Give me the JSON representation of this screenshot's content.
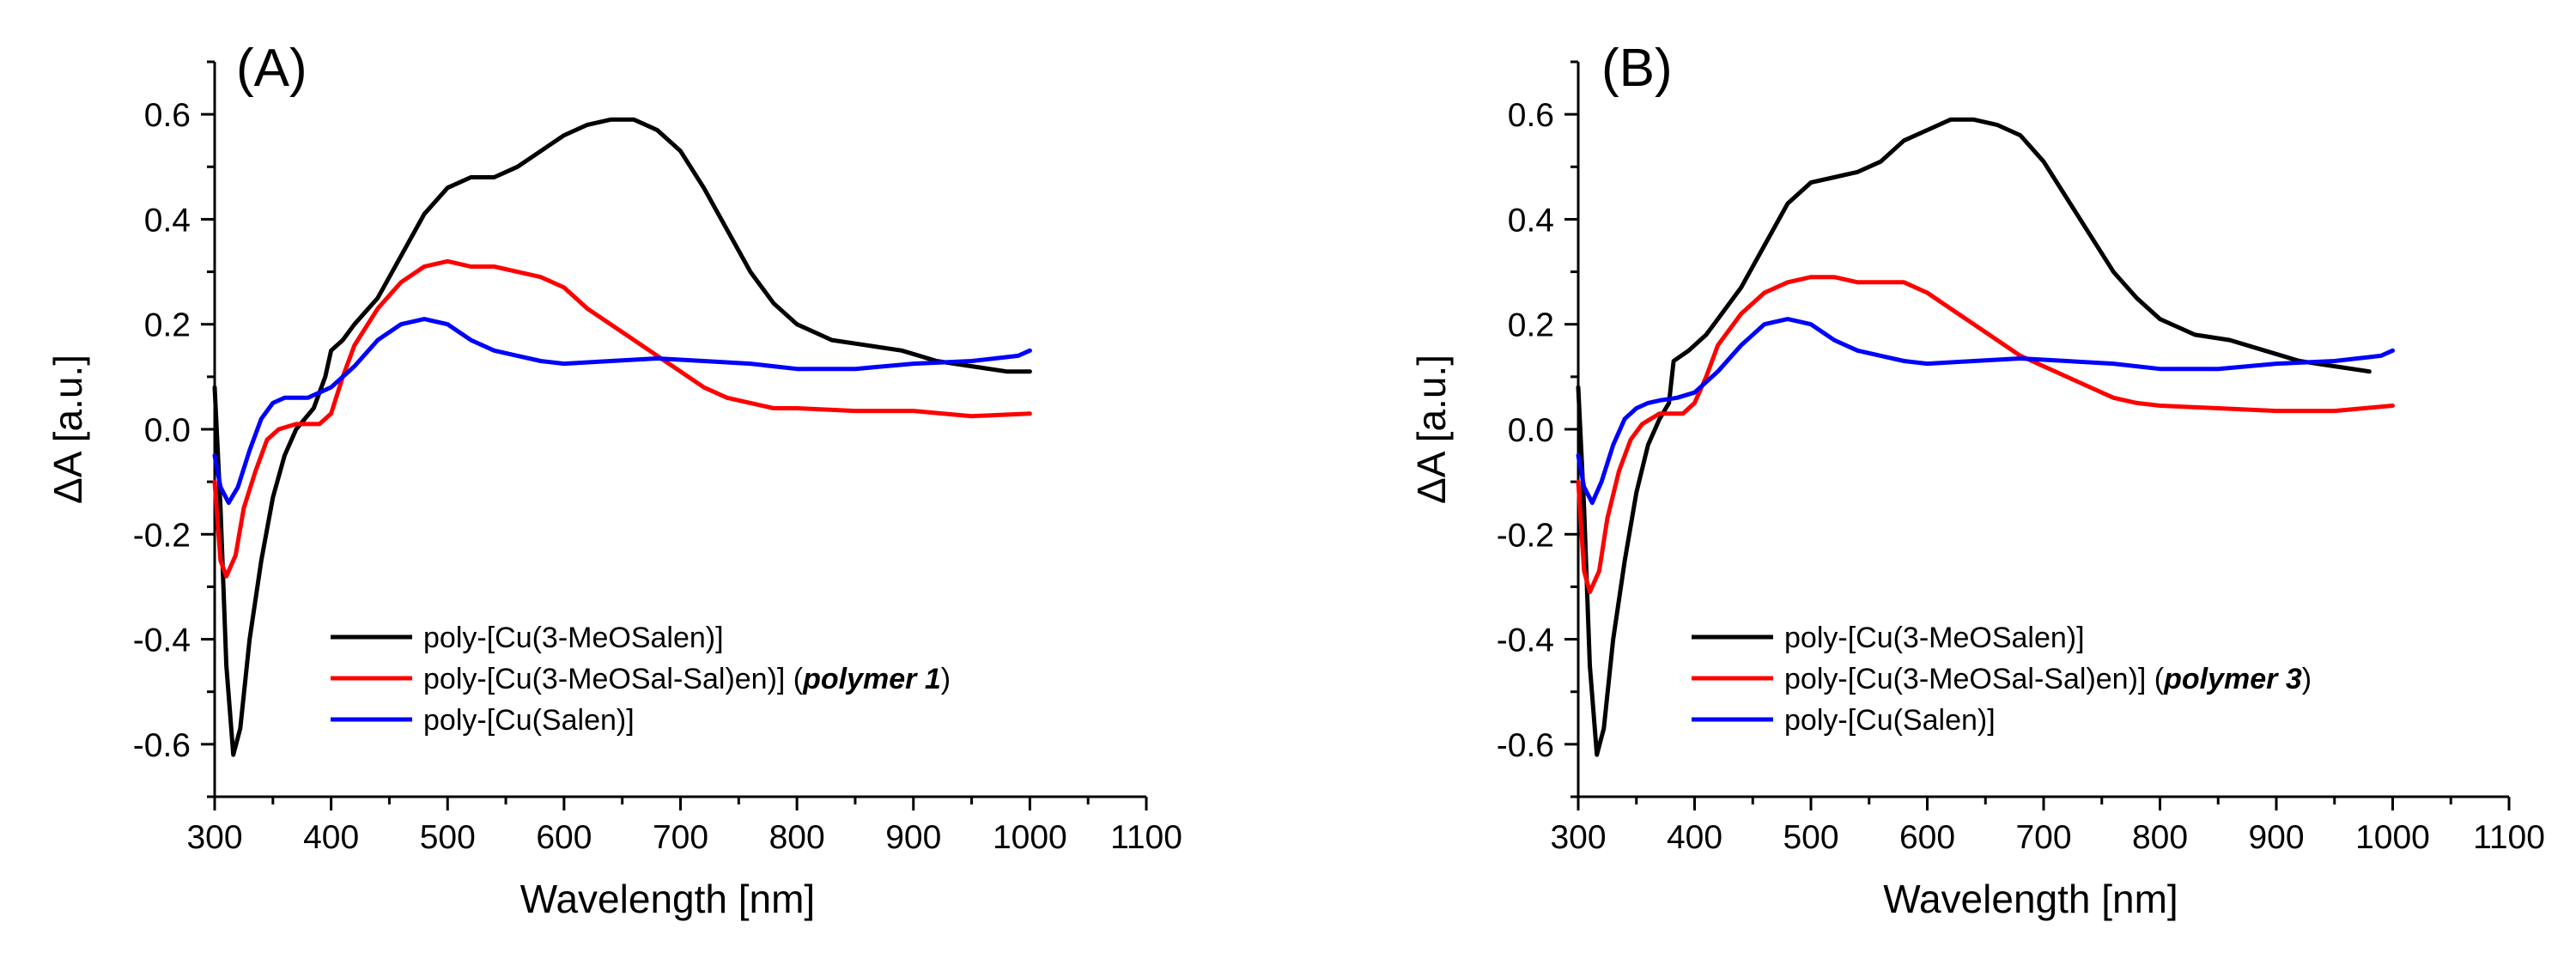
{
  "colors": {
    "black": "#000000",
    "red": "#ff0000",
    "blue": "#0000ff"
  },
  "chart_data": [
    {
      "type": "line",
      "panel_label": "(A)",
      "xlabel": "Wavelength [nm]",
      "ylabel": "ΔA [a.u.]",
      "xlim": [
        300,
        1100
      ],
      "ylim": [
        -0.7,
        0.7
      ],
      "x_ticks": [
        "300",
        "400",
        "500",
        "600",
        "700",
        "800",
        "900",
        "1000",
        "1100"
      ],
      "y_ticks": [
        "-0.6",
        "-0.4",
        "-0.2",
        "0.0",
        "0.2",
        "0.4",
        "0.6"
      ],
      "legend_position": "bottom-center",
      "series": [
        {
          "name": "poly-[Cu(3-MeOSalen)]",
          "color": "#000000",
          "points": [
            [
              300,
              0.08
            ],
            [
              305,
              -0.15
            ],
            [
              310,
              -0.45
            ],
            [
              316,
              -0.62
            ],
            [
              322,
              -0.57
            ],
            [
              330,
              -0.4
            ],
            [
              340,
              -0.25
            ],
            [
              350,
              -0.13
            ],
            [
              360,
              -0.05
            ],
            [
              370,
              0.0
            ],
            [
              385,
              0.04
            ],
            [
              395,
              0.1
            ],
            [
              400,
              0.15
            ],
            [
              410,
              0.17
            ],
            [
              420,
              0.2
            ],
            [
              440,
              0.25
            ],
            [
              460,
              0.33
            ],
            [
              480,
              0.41
            ],
            [
              500,
              0.46
            ],
            [
              520,
              0.48
            ],
            [
              540,
              0.48
            ],
            [
              560,
              0.5
            ],
            [
              580,
              0.53
            ],
            [
              600,
              0.56
            ],
            [
              620,
              0.58
            ],
            [
              640,
              0.59
            ],
            [
              660,
              0.59
            ],
            [
              680,
              0.57
            ],
            [
              700,
              0.53
            ],
            [
              720,
              0.46
            ],
            [
              740,
              0.38
            ],
            [
              760,
              0.3
            ],
            [
              780,
              0.24
            ],
            [
              800,
              0.2
            ],
            [
              830,
              0.17
            ],
            [
              860,
              0.16
            ],
            [
              890,
              0.15
            ],
            [
              920,
              0.13
            ],
            [
              950,
              0.12
            ],
            [
              980,
              0.11
            ],
            [
              1000,
              0.11
            ]
          ]
        },
        {
          "name": "poly-[Cu(3-MeOSal-Sal)en)]",
          "color": "#ff0000",
          "points": [
            [
              300,
              -0.1
            ],
            [
              305,
              -0.25
            ],
            [
              310,
              -0.28
            ],
            [
              318,
              -0.24
            ],
            [
              325,
              -0.15
            ],
            [
              335,
              -0.08
            ],
            [
              345,
              -0.02
            ],
            [
              355,
              0.0
            ],
            [
              370,
              0.01
            ],
            [
              390,
              0.01
            ],
            [
              400,
              0.03
            ],
            [
              410,
              0.1
            ],
            [
              420,
              0.16
            ],
            [
              440,
              0.23
            ],
            [
              460,
              0.28
            ],
            [
              480,
              0.31
            ],
            [
              500,
              0.32
            ],
            [
              520,
              0.31
            ],
            [
              540,
              0.31
            ],
            [
              560,
              0.3
            ],
            [
              580,
              0.29
            ],
            [
              600,
              0.27
            ],
            [
              620,
              0.23
            ],
            [
              640,
              0.2
            ],
            [
              660,
              0.17
            ],
            [
              680,
              0.14
            ],
            [
              700,
              0.11
            ],
            [
              720,
              0.08
            ],
            [
              740,
              0.06
            ],
            [
              760,
              0.05
            ],
            [
              780,
              0.04
            ],
            [
              800,
              0.04
            ],
            [
              850,
              0.035
            ],
            [
              900,
              0.035
            ],
            [
              950,
              0.025
            ],
            [
              1000,
              0.03
            ]
          ]
        },
        {
          "name": "poly-[Cu(Salen)]",
          "color": "#0000ff",
          "points": [
            [
              300,
              -0.05
            ],
            [
              305,
              -0.11
            ],
            [
              312,
              -0.14
            ],
            [
              320,
              -0.11
            ],
            [
              330,
              -0.04
            ],
            [
              340,
              0.02
            ],
            [
              350,
              0.05
            ],
            [
              360,
              0.06
            ],
            [
              370,
              0.06
            ],
            [
              380,
              0.06
            ],
            [
              400,
              0.08
            ],
            [
              420,
              0.12
            ],
            [
              440,
              0.17
            ],
            [
              460,
              0.2
            ],
            [
              480,
              0.21
            ],
            [
              500,
              0.2
            ],
            [
              520,
              0.17
            ],
            [
              540,
              0.15
            ],
            [
              560,
              0.14
            ],
            [
              580,
              0.13
            ],
            [
              600,
              0.125
            ],
            [
              640,
              0.13
            ],
            [
              680,
              0.135
            ],
            [
              720,
              0.13
            ],
            [
              760,
              0.125
            ],
            [
              800,
              0.115
            ],
            [
              850,
              0.115
            ],
            [
              900,
              0.125
            ],
            [
              950,
              0.13
            ],
            [
              990,
              0.14
            ],
            [
              1000,
              0.15
            ]
          ]
        }
      ],
      "legend": [
        {
          "text": "poly-[Cu(3-MeOSalen)]",
          "em": "",
          "tail": "",
          "color": "#000000"
        },
        {
          "text": "poly-[Cu(3-MeOSal-Sal)en)] (",
          "em": "polymer 1",
          "tail": ")",
          "color": "#ff0000"
        },
        {
          "text": "poly-[Cu(Salen)]",
          "em": "",
          "tail": "",
          "color": "#0000ff"
        }
      ]
    },
    {
      "type": "line",
      "panel_label": "(B)",
      "xlabel": "Wavelength [nm]",
      "ylabel": "ΔA [a.u.]",
      "xlim": [
        300,
        1100
      ],
      "ylim": [
        -0.7,
        0.7
      ],
      "x_ticks": [
        "300",
        "400",
        "500",
        "600",
        "700",
        "800",
        "900",
        "1000",
        "1100"
      ],
      "y_ticks": [
        "-0.6",
        "-0.4",
        "-0.2",
        "0.0",
        "0.2",
        "0.4",
        "0.6"
      ],
      "legend_position": "bottom-center",
      "series": [
        {
          "name": "poly-[Cu(3-MeOSalen)]",
          "color": "#000000",
          "points": [
            [
              300,
              0.08
            ],
            [
              305,
              -0.15
            ],
            [
              310,
              -0.45
            ],
            [
              316,
              -0.62
            ],
            [
              322,
              -0.57
            ],
            [
              330,
              -0.4
            ],
            [
              340,
              -0.25
            ],
            [
              350,
              -0.12
            ],
            [
              360,
              -0.03
            ],
            [
              370,
              0.02
            ],
            [
              378,
              0.05
            ],
            [
              382,
              0.13
            ],
            [
              395,
              0.15
            ],
            [
              410,
              0.18
            ],
            [
              420,
              0.21
            ],
            [
              440,
              0.27
            ],
            [
              460,
              0.35
            ],
            [
              480,
              0.43
            ],
            [
              500,
              0.47
            ],
            [
              520,
              0.48
            ],
            [
              540,
              0.49
            ],
            [
              560,
              0.51
            ],
            [
              580,
              0.55
            ],
            [
              600,
              0.57
            ],
            [
              620,
              0.59
            ],
            [
              640,
              0.59
            ],
            [
              660,
              0.58
            ],
            [
              680,
              0.56
            ],
            [
              700,
              0.51
            ],
            [
              720,
              0.44
            ],
            [
              740,
              0.37
            ],
            [
              760,
              0.3
            ],
            [
              780,
              0.25
            ],
            [
              800,
              0.21
            ],
            [
              830,
              0.18
            ],
            [
              860,
              0.17
            ],
            [
              890,
              0.15
            ],
            [
              920,
              0.13
            ],
            [
              950,
              0.12
            ],
            [
              980,
              0.11
            ]
          ]
        },
        {
          "name": "poly-[Cu(3-MeOSal-Sal)en)]",
          "color": "#ff0000",
          "points": [
            [
              300,
              -0.1
            ],
            [
              305,
              -0.27
            ],
            [
              310,
              -0.31
            ],
            [
              318,
              -0.27
            ],
            [
              325,
              -0.17
            ],
            [
              335,
              -0.08
            ],
            [
              345,
              -0.02
            ],
            [
              355,
              0.01
            ],
            [
              370,
              0.03
            ],
            [
              390,
              0.03
            ],
            [
              400,
              0.05
            ],
            [
              410,
              0.1
            ],
            [
              420,
              0.16
            ],
            [
              440,
              0.22
            ],
            [
              460,
              0.26
            ],
            [
              480,
              0.28
            ],
            [
              500,
              0.29
            ],
            [
              520,
              0.29
            ],
            [
              540,
              0.28
            ],
            [
              560,
              0.28
            ],
            [
              580,
              0.28
            ],
            [
              600,
              0.26
            ],
            [
              620,
              0.23
            ],
            [
              640,
              0.2
            ],
            [
              660,
              0.17
            ],
            [
              680,
              0.14
            ],
            [
              700,
              0.12
            ],
            [
              720,
              0.1
            ],
            [
              740,
              0.08
            ],
            [
              760,
              0.06
            ],
            [
              780,
              0.05
            ],
            [
              800,
              0.045
            ],
            [
              850,
              0.04
            ],
            [
              900,
              0.035
            ],
            [
              950,
              0.035
            ],
            [
              1000,
              0.045
            ]
          ]
        },
        {
          "name": "poly-[Cu(Salen)]",
          "color": "#0000ff",
          "points": [
            [
              300,
              -0.05
            ],
            [
              305,
              -0.11
            ],
            [
              312,
              -0.14
            ],
            [
              320,
              -0.1
            ],
            [
              330,
              -0.03
            ],
            [
              340,
              0.02
            ],
            [
              350,
              0.04
            ],
            [
              360,
              0.05
            ],
            [
              370,
              0.055
            ],
            [
              385,
              0.06
            ],
            [
              400,
              0.07
            ],
            [
              420,
              0.11
            ],
            [
              440,
              0.16
            ],
            [
              460,
              0.2
            ],
            [
              480,
              0.21
            ],
            [
              500,
              0.2
            ],
            [
              520,
              0.17
            ],
            [
              540,
              0.15
            ],
            [
              560,
              0.14
            ],
            [
              580,
              0.13
            ],
            [
              600,
              0.125
            ],
            [
              640,
              0.13
            ],
            [
              680,
              0.135
            ],
            [
              720,
              0.13
            ],
            [
              760,
              0.125
            ],
            [
              800,
              0.115
            ],
            [
              850,
              0.115
            ],
            [
              900,
              0.125
            ],
            [
              950,
              0.13
            ],
            [
              990,
              0.14
            ],
            [
              1000,
              0.15
            ]
          ]
        }
      ],
      "legend": [
        {
          "text": "poly-[Cu(3-MeOSalen)]",
          "em": "",
          "tail": "",
          "color": "#000000"
        },
        {
          "text": "poly-[Cu(3-MeOSal-Sal)en)] (",
          "em": "polymer 3",
          "tail": ")",
          "color": "#ff0000"
        },
        {
          "text": "poly-[Cu(Salen)]",
          "em": "",
          "tail": "",
          "color": "#0000ff"
        }
      ]
    }
  ]
}
